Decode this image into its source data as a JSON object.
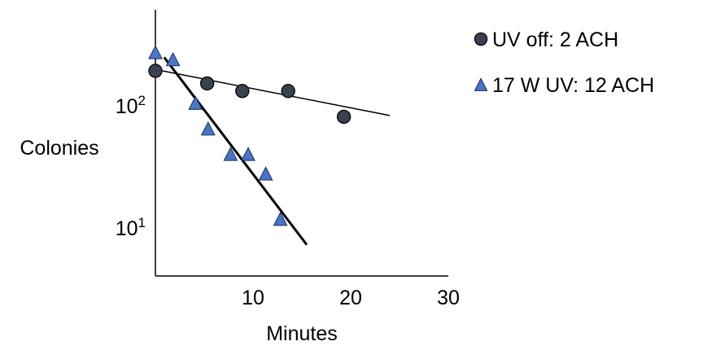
{
  "chart_data": {
    "type": "scatter",
    "title": "",
    "xlabel": "Minutes",
    "ylabel": "Colonies",
    "xlim": [
      0,
      30
    ],
    "ylim": [
      4,
      600
    ],
    "yscale": "log",
    "grid": false,
    "legend_position": "right",
    "x_ticks": [
      {
        "value": 10,
        "label": "10"
      },
      {
        "value": 20,
        "label": "20"
      },
      {
        "value": 30,
        "label": "30"
      }
    ],
    "y_ticks": [
      {
        "value": 100,
        "base": "10",
        "exp": "2"
      },
      {
        "value": 10,
        "base": "10",
        "exp": "1"
      }
    ],
    "series": [
      {
        "name": "UV off: 2 ACH",
        "marker": "circle",
        "color": "#3a4250",
        "x": [
          0,
          5.3,
          8.9,
          13.6,
          19.3
        ],
        "y": [
          190,
          150,
          130,
          130,
          80
        ],
        "fit": {
          "x": [
            0,
            24
          ],
          "y": [
            195,
            82
          ]
        }
      },
      {
        "name": "17 W UV: 12 ACH",
        "marker": "triangle",
        "color": "#4a74c9",
        "x": [
          0,
          1.8,
          4.1,
          5.4,
          7.7,
          9.5,
          11.3,
          12.8
        ],
        "y": [
          265,
          232,
          102,
          63,
          39,
          39,
          27,
          11.5
        ],
        "fit": {
          "x": [
            0.9,
            15.5
          ],
          "y": [
            245,
            7.2
          ]
        }
      }
    ]
  }
}
